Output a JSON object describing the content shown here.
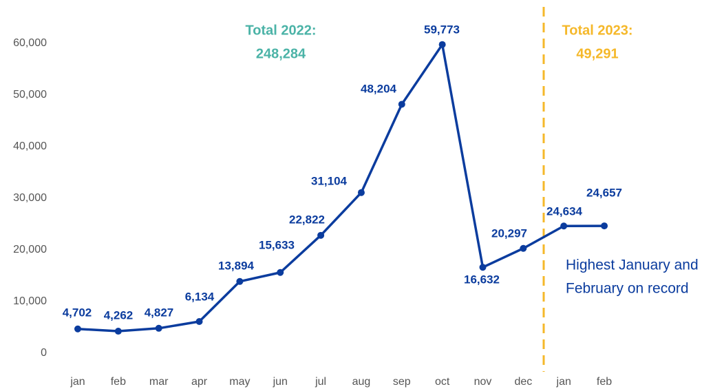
{
  "chart_data": {
    "type": "line",
    "categories": [
      "jan",
      "feb",
      "mar",
      "apr",
      "may",
      "jun",
      "jul",
      "aug",
      "sep",
      "oct",
      "nov",
      "dec",
      "jan",
      "feb"
    ],
    "series": [
      {
        "name": null,
        "color": "#0b3c9e",
        "values": [
          4702,
          4262,
          4827,
          6134,
          13894,
          15633,
          22822,
          31104,
          48204,
          59773,
          16632,
          20297,
          24634,
          24657
        ],
        "value_labels": [
          "4,702",
          "4,262",
          "4,827",
          "6,134",
          "13,894",
          "15,633",
          "22,822",
          "31,104",
          "48,204",
          "59,773",
          "16,632",
          "20,297",
          "24,634",
          "24,657"
        ]
      }
    ],
    "ylim": [
      0,
      60000
    ],
    "yticks": [
      0,
      {
        "value": 10000,
        "label": "10,000"
      },
      {
        "value": 20000,
        "label": "20,000"
      },
      {
        "value": 30000,
        "label": "30,000"
      },
      {
        "value": 40000,
        "label": "40,000"
      },
      {
        "value": 50000,
        "label": "50,000"
      },
      {
        "value": 60000,
        "label": "60,000"
      }
    ],
    "grid": false,
    "annotations": [
      {
        "lines": [
          "Total 2022:",
          "248,284"
        ],
        "color": "#4bb3a7"
      },
      {
        "lines": [
          "Total 2023:",
          "49,291"
        ],
        "color": "#f5b82a"
      },
      {
        "lines": [
          "Highest January and",
          "February on record"
        ],
        "color": "#0b3c9e"
      }
    ],
    "divider_color": "#f5b82a"
  }
}
